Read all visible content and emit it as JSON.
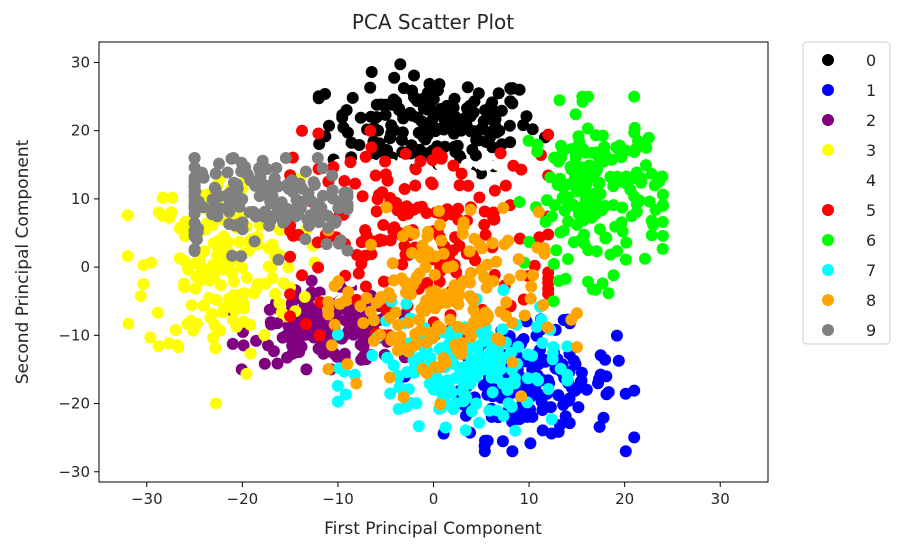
{
  "chart_data": {
    "type": "scatter",
    "title": "PCA Scatter Plot",
    "xlabel": "First Principal Component",
    "ylabel": "Second Principal Component",
    "xlim": [
      -35,
      35
    ],
    "ylim": [
      -31.5,
      33
    ],
    "xticks": [
      -30,
      -20,
      -10,
      0,
      10,
      20,
      30
    ],
    "yticks": [
      -30,
      -20,
      -10,
      0,
      10,
      20,
      30
    ],
    "grid": false,
    "legend_position": "outside-right",
    "series": [
      {
        "name": "0",
        "color": "#000000",
        "center": [
          0,
          21
        ],
        "spread": [
          5.5,
          3.5
        ],
        "range": [
          [
            -12,
            12
          ],
          [
            12,
            30
          ]
        ]
      },
      {
        "name": "1",
        "color": "#0000ff",
        "center": [
          10,
          -17
        ],
        "spread": [
          4.5,
          4
        ],
        "range": [
          [
            -3,
            21
          ],
          [
            -27,
            -1
          ]
        ]
      },
      {
        "name": "2",
        "color": "#800080",
        "center": [
          -11,
          -9
        ],
        "spread": [
          4,
          2.5
        ],
        "range": [
          [
            -21,
            -3
          ],
          [
            -15,
            -2
          ]
        ]
      },
      {
        "name": "3",
        "color": "#ffff00",
        "center": [
          -22,
          0
        ],
        "spread": [
          4,
          7
        ],
        "range": [
          [
            -32,
            -12
          ],
          [
            -28,
            13
          ]
        ]
      },
      {
        "name": "4",
        "color": "#ffffff",
        "center": [
          0,
          5
        ],
        "spread": [
          8,
          8
        ],
        "range": [
          [
            -12,
            12
          ],
          [
            -5,
            15
          ]
        ]
      },
      {
        "name": "5",
        "color": "#ff0000",
        "center": [
          -1,
          5
        ],
        "spread": [
          8,
          7
        ],
        "range": [
          [
            -15,
            12
          ],
          [
            -10,
            20
          ]
        ]
      },
      {
        "name": "6",
        "color": "#00ff00",
        "center": [
          17,
          11
        ],
        "spread": [
          3.5,
          6
        ],
        "range": [
          [
            9,
            24
          ],
          [
            -5,
            25
          ]
        ]
      },
      {
        "name": "7",
        "color": "#00ffff",
        "center": [
          3,
          -15
        ],
        "spread": [
          5,
          4
        ],
        "range": [
          [
            -10,
            14
          ],
          [
            -24,
            -3
          ]
        ]
      },
      {
        "name": "8",
        "color": "#ffa500",
        "center": [
          0,
          -5
        ],
        "spread": [
          5.5,
          6.5
        ],
        "range": [
          [
            -11,
            15
          ],
          [
            -21,
            9
          ]
        ]
      },
      {
        "name": "9",
        "color": "#808080",
        "center": [
          -18,
          10
        ],
        "spread": [
          6,
          3.5
        ],
        "range": [
          [
            -25,
            -9
          ],
          [
            -23,
            16
          ]
        ]
      }
    ]
  }
}
